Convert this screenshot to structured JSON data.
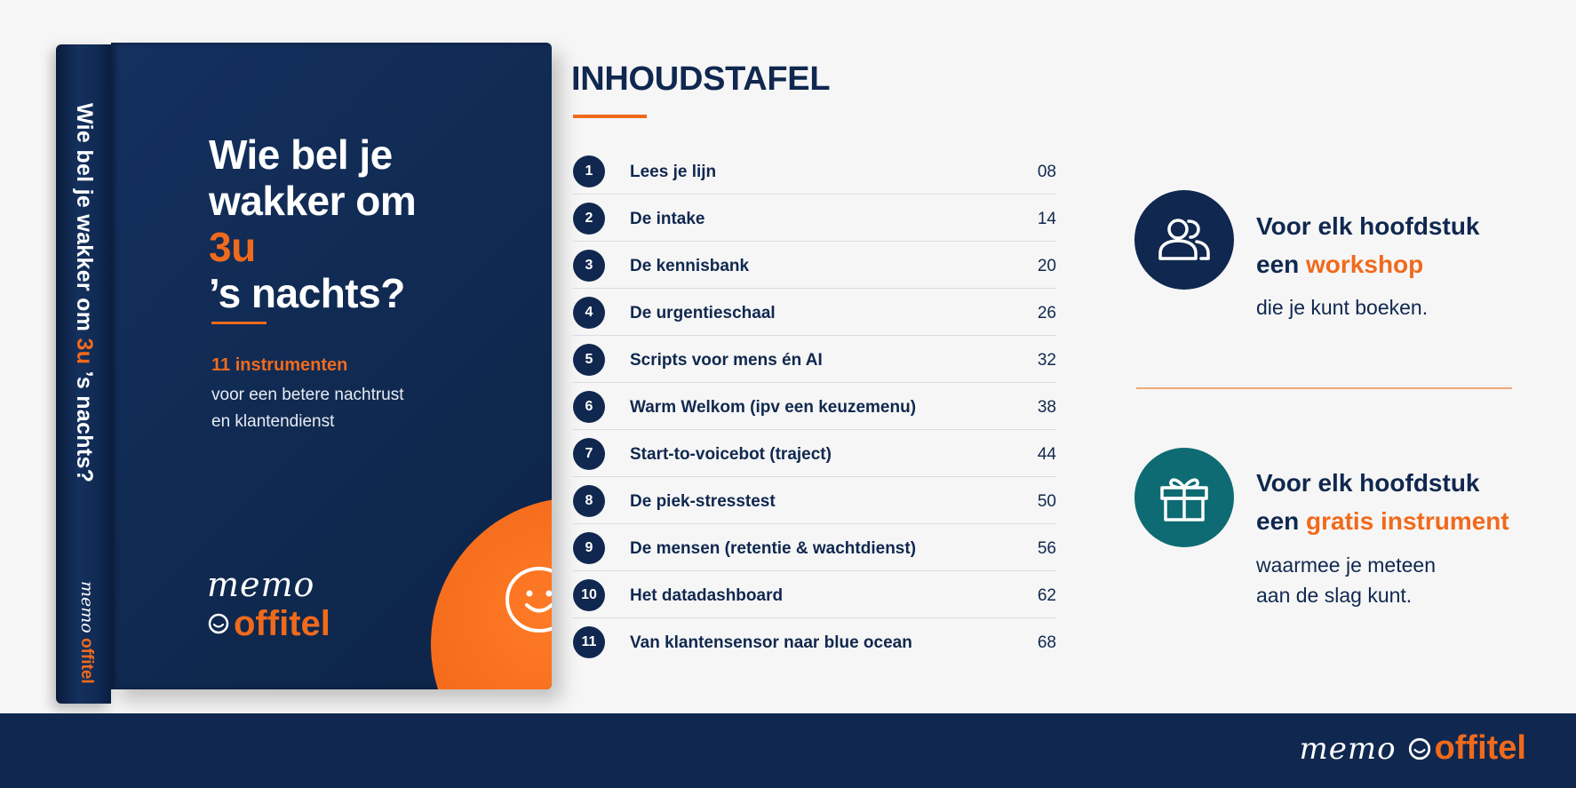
{
  "book": {
    "spine_title_pre": "Wie bel je wakker om ",
    "spine_title_accent": "3u",
    "spine_title_post": " ’s nachts?",
    "spine_logo_memo": "memo",
    "spine_logo_brand": "offitel",
    "title_line1": "Wie bel je",
    "title_line2_pre": "wakker om ",
    "title_line2_accent": "3u",
    "title_line3": "’s nachts?",
    "subtitle_highlight": "11 instrumenten",
    "subtitle_line1": "voor een betere nachtrust",
    "subtitle_line2": "en klantendienst",
    "logo_memo": "memo",
    "logo_brand": "offitel",
    "icon": "smiley-chat-icon"
  },
  "toc": {
    "heading": "INHOUDSTAFEL",
    "items": [
      {
        "num": "1",
        "title": "Lees je lijn",
        "page": "08"
      },
      {
        "num": "2",
        "title": "De intake",
        "page": "14"
      },
      {
        "num": "3",
        "title": "De kennisbank",
        "page": "20"
      },
      {
        "num": "4",
        "title": "De urgentieschaal",
        "page": "26"
      },
      {
        "num": "5",
        "title": "Scripts voor mens én AI",
        "page": "32"
      },
      {
        "num": "6",
        "title": "Warm Welkom (ipv een keuzemenu)",
        "page": "38"
      },
      {
        "num": "7",
        "title": "Start-to-voicebot (traject)",
        "page": "44"
      },
      {
        "num": "8",
        "title": "De piek-stresstest",
        "page": "50"
      },
      {
        "num": "9",
        "title": "De mensen (retentie & wachtdienst)",
        "page": "56"
      },
      {
        "num": "10",
        "title": "Het datadashboard",
        "page": "62"
      },
      {
        "num": "11",
        "title": "Van klantensensor naar blue ocean",
        "page": "68"
      }
    ]
  },
  "features": [
    {
      "icon": "people-icon",
      "icon_color": "#10284f",
      "heading_line1": "Voor elk hoofdstuk",
      "heading_line2_pre": "een ",
      "heading_line2_accent": "workshop",
      "body_line1": "die je kunt boeken."
    },
    {
      "icon": "gift-icon",
      "icon_color": "#0f6b73",
      "heading_line1": "Voor elk hoofdstuk",
      "heading_line2_pre": "een ",
      "heading_line2_accent": "gratis instrument",
      "body_line1": "waarmee je meteen",
      "body_line2": "aan de slag kunt."
    }
  ],
  "footer": {
    "logo_memo": "memo",
    "logo_brand": "offitel"
  },
  "colors": {
    "navy": "#10284f",
    "orange": "#f06a1c",
    "teal": "#0f6b73",
    "background": "#f6f6f6"
  }
}
